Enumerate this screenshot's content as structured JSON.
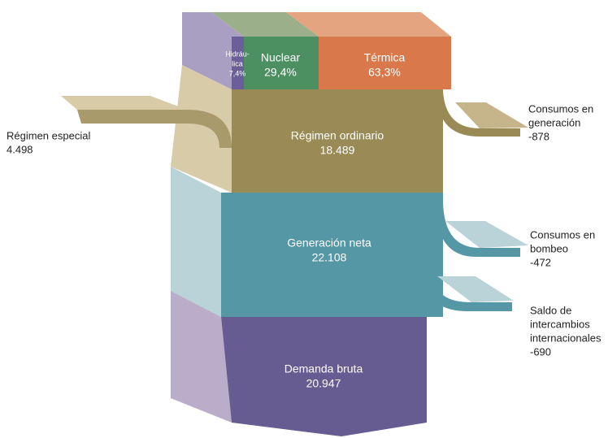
{
  "nodes": [
    {
      "id": "hidraulica",
      "lines": [
        "Hidráu-",
        "lica",
        "7,4%"
      ]
    },
    {
      "id": "nuclear",
      "lines": [
        "Nuclear",
        "29,4%"
      ]
    },
    {
      "id": "termica",
      "lines": [
        "Térmica",
        "63,3%"
      ]
    },
    {
      "id": "regimen-ordinario",
      "lines": [
        "Régimen ordinario",
        "18.489"
      ]
    },
    {
      "id": "regimen-especial",
      "lines": [
        "Régimen especial",
        "4.498"
      ]
    },
    {
      "id": "consumos-generacion",
      "lines": [
        "Consumos en",
        "generación",
        "-878"
      ]
    },
    {
      "id": "generacion-neta",
      "lines": [
        "Generación neta",
        "22.108"
      ]
    },
    {
      "id": "consumos-bombeo",
      "lines": [
        "Consumos en",
        "bombeo",
        "-472"
      ]
    },
    {
      "id": "saldo-intercambios",
      "lines": [
        "Saldo de",
        "intercambios",
        "internacionales",
        "-690"
      ]
    },
    {
      "id": "demanda-bruta",
      "lines": [
        "Demanda bruta",
        "20.947"
      ]
    }
  ]
}
